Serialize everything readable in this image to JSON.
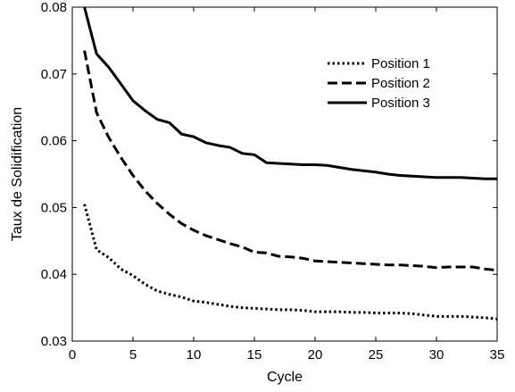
{
  "chart_data": {
    "type": "line",
    "xlabel": "Cycle",
    "ylabel": "Taux de Solidification",
    "xlim": [
      0,
      35
    ],
    "ylim": [
      0.03,
      0.08
    ],
    "xticks": [
      0,
      5,
      10,
      15,
      20,
      25,
      30,
      35
    ],
    "yticks": [
      0.03,
      0.04,
      0.05,
      0.06,
      0.07,
      0.08
    ],
    "ytick_labels": [
      "0.03",
      "0.04",
      "0.05",
      "0.06",
      "0.07",
      "0.08"
    ],
    "grid": false,
    "legend_position": "top-right",
    "x": [
      1,
      2,
      3,
      4,
      5,
      6,
      7,
      8,
      9,
      10,
      11,
      12,
      13,
      14,
      15,
      16,
      17,
      18,
      19,
      20,
      21,
      22,
      23,
      24,
      25,
      26,
      27,
      28,
      29,
      30,
      31,
      32,
      33,
      34,
      35
    ],
    "series": [
      {
        "name": "Position 1",
        "style": "dotted",
        "values": [
          0.0505,
          0.0437,
          0.0425,
          0.0408,
          0.0398,
          0.0385,
          0.0375,
          0.037,
          0.0366,
          0.036,
          0.0358,
          0.0355,
          0.0352,
          0.035,
          0.0349,
          0.0348,
          0.0347,
          0.0347,
          0.0346,
          0.0344,
          0.0344,
          0.0344,
          0.0343,
          0.0343,
          0.0342,
          0.0342,
          0.0342,
          0.0341,
          0.0339,
          0.0337,
          0.0337,
          0.0337,
          0.0336,
          0.0335,
          0.0333
        ]
      },
      {
        "name": "Position 2",
        "style": "dashed",
        "values": [
          0.0735,
          0.0642,
          0.0605,
          0.0575,
          0.0548,
          0.0525,
          0.0506,
          0.049,
          0.0476,
          0.0466,
          0.0458,
          0.0452,
          0.0446,
          0.0441,
          0.0433,
          0.0432,
          0.0427,
          0.0426,
          0.0424,
          0.042,
          0.0419,
          0.0418,
          0.0417,
          0.0416,
          0.0415,
          0.0414,
          0.0414,
          0.0413,
          0.0412,
          0.041,
          0.0411,
          0.0411,
          0.0411,
          0.0408,
          0.0406
        ]
      },
      {
        "name": "Position 3",
        "style": "solid",
        "values": [
          0.08,
          0.073,
          0.071,
          0.0685,
          0.066,
          0.0645,
          0.0632,
          0.0627,
          0.061,
          0.0606,
          0.0597,
          0.0593,
          0.059,
          0.0581,
          0.0579,
          0.0567,
          0.0566,
          0.0565,
          0.0564,
          0.0564,
          0.0563,
          0.056,
          0.0557,
          0.0555,
          0.0553,
          0.055,
          0.0548,
          0.0547,
          0.0546,
          0.0545,
          0.0545,
          0.0545,
          0.0544,
          0.0543,
          0.0543
        ]
      }
    ],
    "colors": {
      "line": "#000000",
      "axis": "#000000",
      "background": "#ffffff"
    }
  }
}
